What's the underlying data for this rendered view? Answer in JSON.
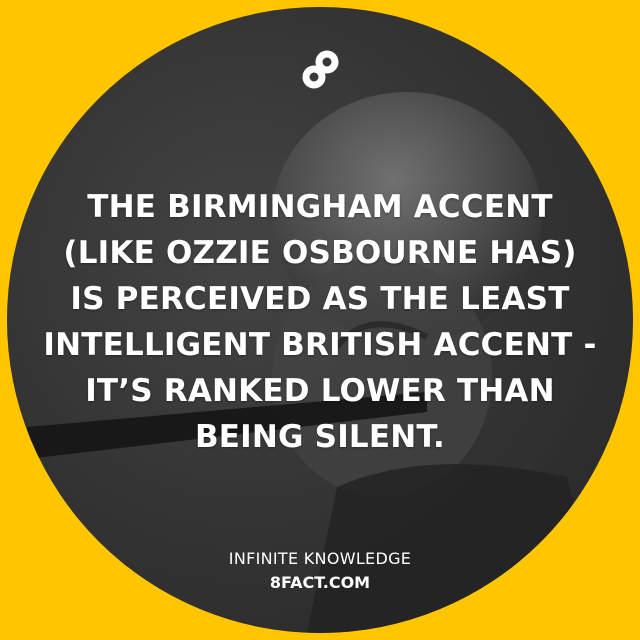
{
  "logo": {
    "icon": "infinity-8-icon",
    "color": "#FFFFFF"
  },
  "fact": {
    "lines": [
      "THE BIRMINGHAM ACCENT",
      "(LIKE OZZIE OSBOURNE HAS)",
      "IS PERCEIVED AS THE LEAST",
      "INTELLIGENT BRITISH ACCENT -",
      "IT’S RANKED LOWER THAN",
      "BEING SILENT."
    ]
  },
  "footer": {
    "tagline": "INFINITE KNOWLEDGE",
    "site": "8FACT.COM"
  },
  "colors": {
    "background": "#FFC600",
    "text": "#FFFFFF"
  }
}
